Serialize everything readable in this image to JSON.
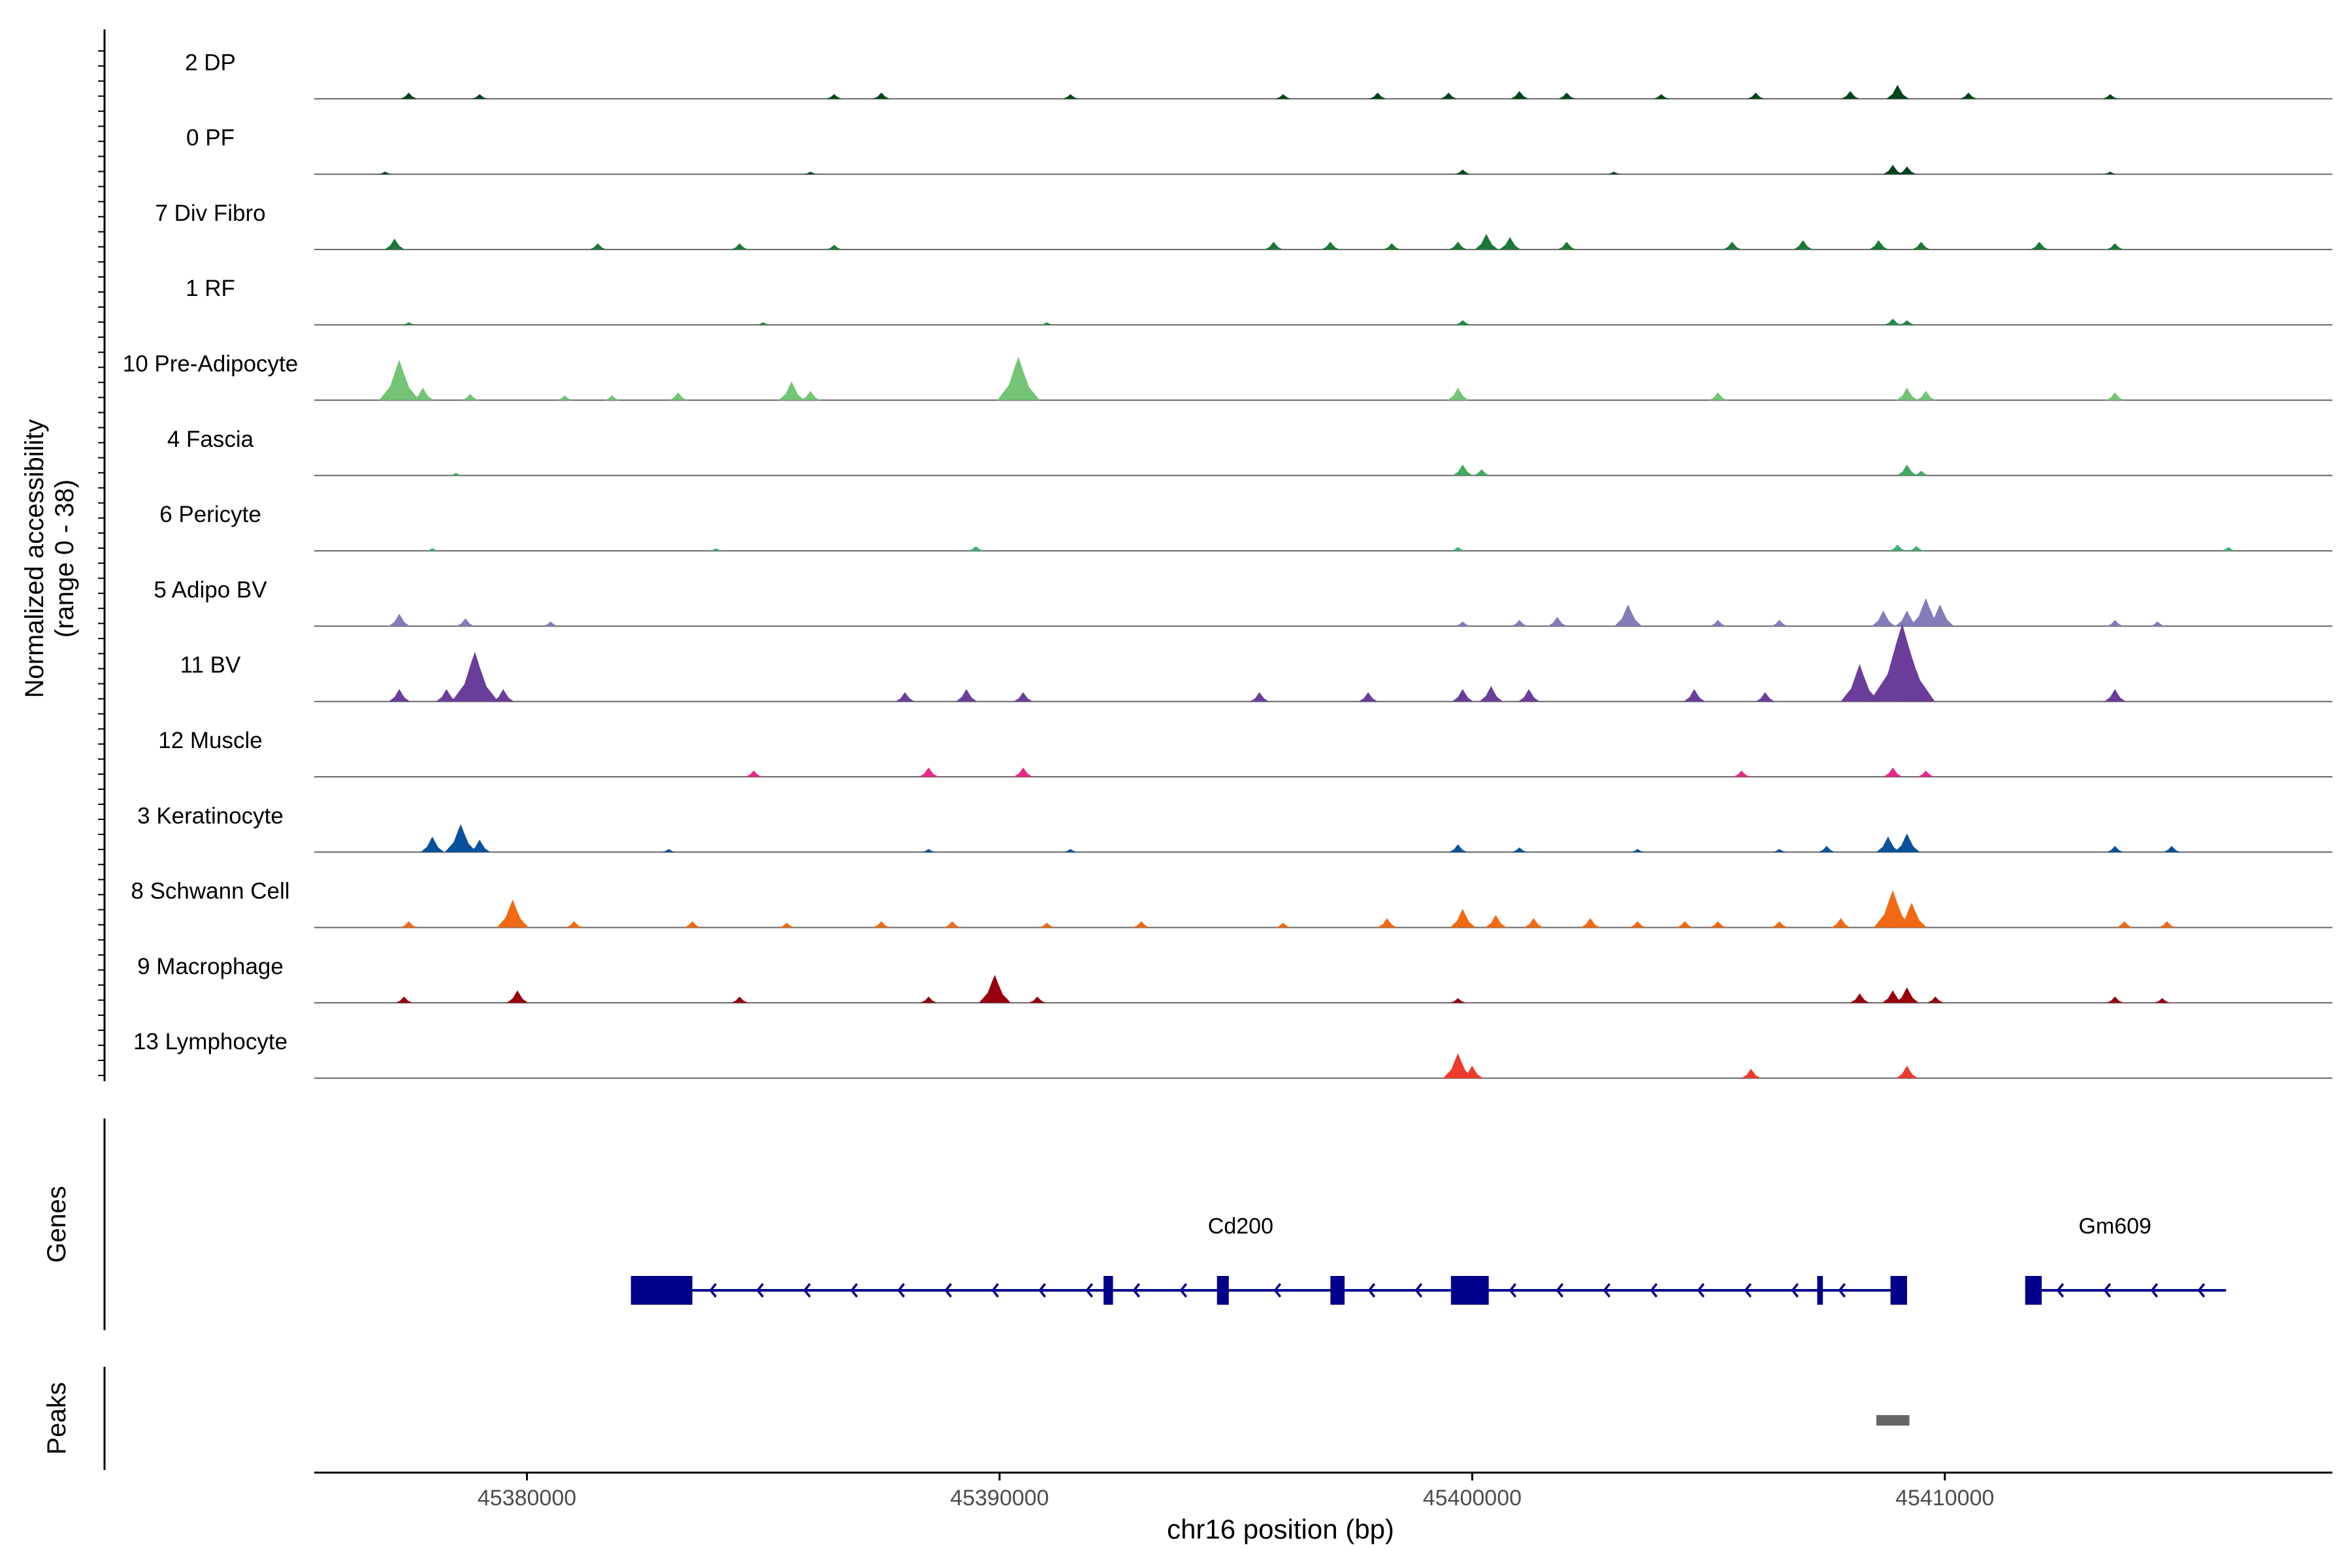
{
  "chart_data": {
    "type": "area",
    "title": "",
    "ylabel": "Normalized accessibility",
    "ylabel_range": "(range 0 - 38)",
    "ylim": [
      0,
      38
    ],
    "xlabel": "chr16 position (bp)",
    "xlim": [
      45375500,
      45418200
    ],
    "x_ticks": [
      45380000,
      45390000,
      45400000,
      45410000
    ],
    "x_tick_labels": [
      "45380000",
      "45390000",
      "45400000",
      "45410000"
    ],
    "genes_label": "Genes",
    "peaks_label": "Peaks",
    "tracks": [
      {
        "name": "2 DP",
        "color": "#00441b",
        "peaks": [
          [
            45377500,
            2
          ],
          [
            45379000,
            1.5
          ],
          [
            45386500,
            1.5
          ],
          [
            45387500,
            2
          ],
          [
            45391500,
            1.5
          ],
          [
            45396000,
            1.5
          ],
          [
            45398000,
            2
          ],
          [
            45399500,
            2
          ],
          [
            45401000,
            2.5
          ],
          [
            45402000,
            2
          ],
          [
            45404000,
            1.5
          ],
          [
            45406000,
            2
          ],
          [
            45408000,
            2.5
          ],
          [
            45409000,
            4.5
          ],
          [
            45410500,
            2
          ],
          [
            45413500,
            1.5
          ]
        ]
      },
      {
        "name": "0 PF",
        "color": "#00441b",
        "peaks": [
          [
            45377000,
            0.8
          ],
          [
            45386000,
            0.8
          ],
          [
            45399800,
            1.5
          ],
          [
            45403000,
            0.8
          ],
          [
            45408900,
            3
          ],
          [
            45409200,
            2.5
          ],
          [
            45413500,
            0.8
          ]
        ]
      },
      {
        "name": "7 Div Fibro",
        "color": "#1a7837",
        "peaks": [
          [
            45377200,
            3.5
          ],
          [
            45381500,
            2
          ],
          [
            45384500,
            2
          ],
          [
            45386500,
            1.5
          ],
          [
            45395800,
            2.5
          ],
          [
            45397000,
            2.5
          ],
          [
            45398300,
            2
          ],
          [
            45399700,
            2.5
          ],
          [
            45400300,
            5
          ],
          [
            45400800,
            4
          ],
          [
            45402000,
            2.5
          ],
          [
            45405500,
            2.5
          ],
          [
            45407000,
            3
          ],
          [
            45408600,
            3
          ],
          [
            45409500,
            2.5
          ],
          [
            45412000,
            2.5
          ],
          [
            45413600,
            2
          ]
        ]
      },
      {
        "name": "1 RF",
        "color": "#238b45",
        "peaks": [
          [
            45377500,
            0.8
          ],
          [
            45385000,
            0.8
          ],
          [
            45391000,
            0.8
          ],
          [
            45399800,
            1.5
          ],
          [
            45408900,
            2
          ],
          [
            45409200,
            1.5
          ]
        ]
      },
      {
        "name": "10 Pre-Adipocyte",
        "color": "#74c476",
        "peaks": [
          [
            45377300,
            13
          ],
          [
            45377800,
            4
          ],
          [
            45378800,
            2
          ],
          [
            45380800,
            1.5
          ],
          [
            45381800,
            1.5
          ],
          [
            45383200,
            2.5
          ],
          [
            45385600,
            6
          ],
          [
            45386000,
            3
          ],
          [
            45390400,
            14
          ],
          [
            45390200,
            5
          ],
          [
            45399700,
            4
          ],
          [
            45405200,
            2.5
          ],
          [
            45409200,
            4
          ],
          [
            45409600,
            3
          ],
          [
            45413600,
            2.5
          ]
        ]
      },
      {
        "name": "4 Fascia",
        "color": "#41ab5d",
        "peaks": [
          [
            45378500,
            0.8
          ],
          [
            45399800,
            3.5
          ],
          [
            45400200,
            2
          ],
          [
            45409200,
            3.5
          ],
          [
            45409500,
            1.5
          ]
        ]
      },
      {
        "name": "6 Pericyte",
        "color": "#41ae76",
        "peaks": [
          [
            45378000,
            0.8
          ],
          [
            45384000,
            0.8
          ],
          [
            45389500,
            1.5
          ],
          [
            45399700,
            1.2
          ],
          [
            45409000,
            2
          ],
          [
            45409400,
            1.5
          ],
          [
            45416000,
            1.2
          ]
        ]
      },
      {
        "name": "5 Adipo BV",
        "color": "#807dba",
        "peaks": [
          [
            45377300,
            4
          ],
          [
            45378700,
            2.5
          ],
          [
            45380500,
            1.5
          ],
          [
            45399800,
            1.5
          ],
          [
            45401000,
            2
          ],
          [
            45401800,
            3
          ],
          [
            45403300,
            7
          ],
          [
            45405200,
            2
          ],
          [
            45406500,
            2
          ],
          [
            45408700,
            5
          ],
          [
            45409200,
            5
          ],
          [
            45409600,
            9
          ],
          [
            45409900,
            7
          ],
          [
            45413600,
            2
          ],
          [
            45414500,
            1.5
          ]
        ]
      },
      {
        "name": "11 BV",
        "color": "#6a3d9a",
        "peaks": [
          [
            45377300,
            4
          ],
          [
            45378300,
            4
          ],
          [
            45378900,
            16
          ],
          [
            45379500,
            4
          ],
          [
            45388000,
            3
          ],
          [
            45389300,
            4
          ],
          [
            45390500,
            3
          ],
          [
            45395500,
            3
          ],
          [
            45397800,
            3
          ],
          [
            45399800,
            4
          ],
          [
            45400400,
            5
          ],
          [
            45401200,
            4
          ],
          [
            45404700,
            4
          ],
          [
            45406200,
            3
          ],
          [
            45408200,
            12
          ],
          [
            45409100,
            25
          ],
          [
            45409400,
            10
          ],
          [
            45413600,
            4
          ]
        ]
      },
      {
        "name": "12 Muscle",
        "color": "#e7298a",
        "peaks": [
          [
            45384800,
            2
          ],
          [
            45388500,
            3
          ],
          [
            45390500,
            3
          ],
          [
            45405700,
            2
          ],
          [
            45408900,
            3
          ],
          [
            45409600,
            2
          ]
        ]
      },
      {
        "name": "3 Keratinocyte",
        "color": "#08519c",
        "peaks": [
          [
            45378000,
            5
          ],
          [
            45378600,
            9
          ],
          [
            45379000,
            4
          ],
          [
            45383000,
            1
          ],
          [
            45388500,
            1
          ],
          [
            45391500,
            1
          ],
          [
            45399700,
            2.5
          ],
          [
            45401000,
            1.5
          ],
          [
            45403500,
            1
          ],
          [
            45406500,
            1
          ],
          [
            45407500,
            2
          ],
          [
            45408800,
            5
          ],
          [
            45409200,
            6
          ],
          [
            45413600,
            2
          ],
          [
            45414800,
            2
          ]
        ]
      },
      {
        "name": "8 Schwann Cell",
        "color": "#f16913",
        "peaks": [
          [
            45377500,
            2
          ],
          [
            45379700,
            9
          ],
          [
            45381000,
            2
          ],
          [
            45383500,
            2
          ],
          [
            45385500,
            1.5
          ],
          [
            45387500,
            2
          ],
          [
            45389000,
            2
          ],
          [
            45391000,
            1.5
          ],
          [
            45393000,
            2
          ],
          [
            45396000,
            1.5
          ],
          [
            45398200,
            3
          ],
          [
            45399800,
            6
          ],
          [
            45400500,
            4
          ],
          [
            45401300,
            3
          ],
          [
            45402500,
            3
          ],
          [
            45403500,
            2
          ],
          [
            45404500,
            2
          ],
          [
            45405200,
            2
          ],
          [
            45406500,
            2
          ],
          [
            45407800,
            3
          ],
          [
            45408900,
            12
          ],
          [
            45409300,
            8
          ],
          [
            45413800,
            2
          ],
          [
            45414700,
            2
          ]
        ]
      },
      {
        "name": "9 Macrophage",
        "color": "#99000d",
        "peaks": [
          [
            45377400,
            2
          ],
          [
            45379800,
            4
          ],
          [
            45384500,
            2
          ],
          [
            45388500,
            2
          ],
          [
            45389900,
            9
          ],
          [
            45390800,
            2
          ],
          [
            45399700,
            1.5
          ],
          [
            45408200,
            3
          ],
          [
            45408900,
            4
          ],
          [
            45409200,
            5
          ],
          [
            45409800,
            2
          ],
          [
            45413600,
            2
          ],
          [
            45414600,
            1.5
          ]
        ]
      },
      {
        "name": "13 Lymphocyte",
        "color": "#ef3b2c",
        "peaks": [
          [
            45399700,
            8
          ],
          [
            45400000,
            4
          ],
          [
            45405900,
            3
          ],
          [
            45409200,
            4
          ]
        ]
      }
    ],
    "genes": [
      {
        "name": "Cd200",
        "strand": "-",
        "start": 45382200,
        "end": 45409200,
        "label_x": 45395100,
        "exons": [
          [
            45382200,
            45383500
          ],
          [
            45392200,
            45392400
          ],
          [
            45394600,
            45394850
          ],
          [
            45397000,
            45397300
          ],
          [
            45399550,
            45400350
          ],
          [
            45407300,
            45407420
          ],
          [
            45408850,
            45409200
          ]
        ]
      },
      {
        "name": "Gm609",
        "strand": "-",
        "start": 45411700,
        "end": 45415950,
        "label_x": 45413600,
        "exons": [
          [
            45411700,
            45412050
          ]
        ]
      }
    ],
    "peaks_regions": [
      [
        45408550,
        45409250
      ]
    ]
  }
}
